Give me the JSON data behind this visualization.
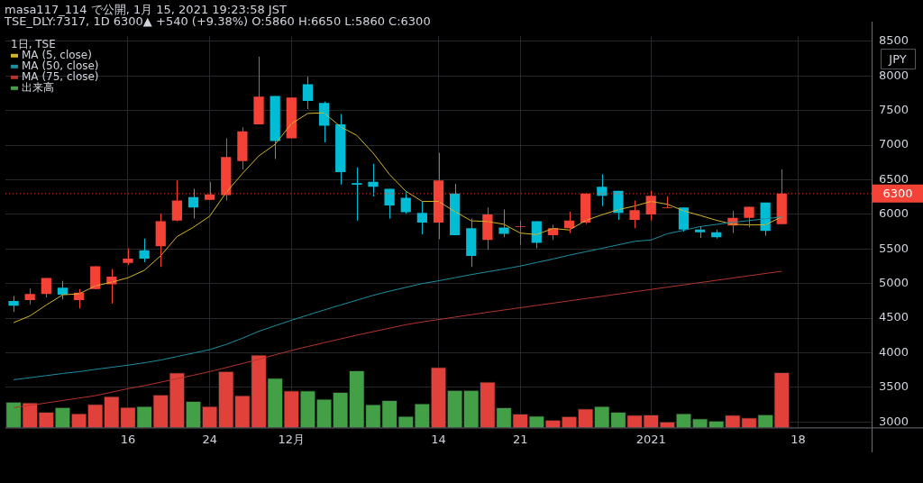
{
  "chart_data": {
    "type": "candlestick",
    "title": "masa117_114 で公開, 1月 15, 2021 19:23:58 JST",
    "subtitle": "TSE_DLY:7317, 1D 6300▲ +540 (+9.38%) O:5860 H:6650 L:5860 C:6300",
    "legend_title": "1日, TSE",
    "annotations": [
      "JPY"
    ],
    "categories": [
      null,
      null,
      null,
      null,
      null,
      null,
      null,
      "16",
      null,
      null,
      null,
      null,
      "24",
      null,
      null,
      null,
      null,
      "12月",
      null,
      null,
      null,
      null,
      null,
      null,
      null,
      null,
      "14",
      null,
      null,
      null,
      null,
      "21",
      null,
      null,
      null,
      null,
      null,
      null,
      null,
      "2021",
      null,
      null,
      null,
      null,
      null,
      null,
      null,
      null,
      "18",
      null,
      null,
      null,
      null
    ],
    "ohlc": [
      [
        4750,
        4820,
        4590,
        4680
      ],
      [
        4760,
        4930,
        4700,
        4850
      ],
      [
        4850,
        5080,
        4800,
        5080
      ],
      [
        4940,
        5040,
        4770,
        4840
      ],
      [
        4760,
        4920,
        4640,
        4870
      ],
      [
        4920,
        5250,
        4920,
        5250
      ],
      [
        4990,
        5210,
        4710,
        5100
      ],
      [
        5300,
        5510,
        5270,
        5360
      ],
      [
        5480,
        5650,
        5310,
        5360
      ],
      [
        5540,
        6010,
        5240,
        5900
      ],
      [
        5910,
        6490,
        5900,
        6200
      ],
      [
        6250,
        6370,
        5940,
        6100
      ],
      [
        6210,
        6470,
        6210,
        6290
      ],
      [
        6280,
        7100,
        6200,
        6830
      ],
      [
        6770,
        7260,
        6650,
        7200
      ],
      [
        7300,
        8280,
        7300,
        7700
      ],
      [
        7710,
        7710,
        6800,
        7060
      ],
      [
        7100,
        7690,
        7100,
        7690
      ],
      [
        7880,
        7990,
        7520,
        7640
      ],
      [
        7610,
        7630,
        7040,
        7280
      ],
      [
        7300,
        7450,
        6430,
        6610
      ],
      [
        6450,
        6680,
        5910,
        6430
      ],
      [
        6470,
        6730,
        6260,
        6400
      ],
      [
        6370,
        6370,
        5940,
        6130
      ],
      [
        6240,
        6330,
        6010,
        6030
      ],
      [
        6020,
        6180,
        5710,
        5880
      ],
      [
        5880,
        6890,
        5640,
        6490
      ],
      [
        6300,
        6440,
        5700,
        5700
      ],
      [
        5800,
        5940,
        5240,
        5400
      ],
      [
        5630,
        6100,
        5490,
        6000
      ],
      [
        5810,
        6070,
        5670,
        5720
      ],
      [
        5820,
        5910,
        5560,
        5830
      ],
      [
        5900,
        5900,
        5510,
        5590
      ],
      [
        5700,
        5850,
        5630,
        5800
      ],
      [
        5800,
        6040,
        5730,
        5910
      ],
      [
        5880,
        6300,
        5860,
        6300
      ],
      [
        6400,
        6580,
        6120,
        6270
      ],
      [
        6340,
        6340,
        5920,
        6020
      ],
      [
        5920,
        6200,
        5800,
        6060
      ],
      [
        6000,
        6340,
        5910,
        6270
      ],
      [
        6090,
        6260,
        6090,
        6100
      ],
      [
        6100,
        6100,
        5750,
        5780
      ],
      [
        5780,
        5830,
        5660,
        5740
      ],
      [
        5740,
        5780,
        5650,
        5670
      ],
      [
        5840,
        6050,
        5730,
        5950
      ],
      [
        5950,
        6110,
        5810,
        6110
      ],
      [
        6170,
        6170,
        5690,
        5760
      ],
      [
        5860,
        6650,
        5860,
        6300
      ],
      null,
      null,
      null,
      null,
      null
    ],
    "colors": [
      "#00bcd4",
      "#f44336",
      "#f44336",
      "#00bcd4",
      "#f44336",
      "#f44336",
      "#f44336",
      "#f44336",
      "#00bcd4",
      "#f44336",
      "#f44336",
      "#00bcd4",
      "#f44336",
      "#f44336",
      "#f44336",
      "#f44336",
      "#00bcd4",
      "#f44336",
      "#00bcd4",
      "#00bcd4",
      "#00bcd4",
      "#00bcd4",
      "#00bcd4",
      "#00bcd4",
      "#00bcd4",
      "#00bcd4",
      "#f44336",
      "#00bcd4",
      "#00bcd4",
      "#f44336",
      "#00bcd4",
      "#f44336",
      "#00bcd4",
      "#f44336",
      "#f44336",
      "#f44336",
      "#00bcd4",
      "#00bcd4",
      "#f44336",
      "#f44336",
      "#f44336",
      "#00bcd4",
      "#00bcd4",
      "#00bcd4",
      "#f44336",
      "#f44336",
      "#00bcd4",
      "#f44336",
      null,
      null,
      null,
      null,
      null
    ],
    "series": [
      {
        "type": "bar",
        "name": "出来高",
        "values": [
          3294,
          3283,
          3147,
          3214,
          3126,
          3261,
          3376,
          3219,
          3232,
          3397,
          3715,
          3304,
          3232,
          3736,
          3388,
          3973,
          3638,
          3456,
          3456,
          3337,
          3434,
          3745,
          3257,
          3316,
          3087,
          3270,
          3795,
          3464,
          3464,
          3582,
          3213,
          3121,
          3090,
          3033,
          3085,
          3194,
          3230,
          3146,
          3103,
          3107,
          3006,
          3126,
          3051,
          3020,
          3103,
          3064,
          3112,
          3721,
          null,
          null,
          null,
          null,
          null
        ],
        "colors": [
          "#43a047",
          "#e0413a",
          "#e0413a",
          "#43a047",
          "#e0413a",
          "#e0413a",
          "#e0413a",
          "#e0413a",
          "#43a047",
          "#e0413a",
          "#e0413a",
          "#43a047",
          "#e0413a",
          "#e0413a",
          "#e0413a",
          "#e0413a",
          "#43a047",
          "#e0413a",
          "#43a047",
          "#43a047",
          "#43a047",
          "#43a047",
          "#43a047",
          "#43a047",
          "#43a047",
          "#43a047",
          "#e0413a",
          "#43a047",
          "#43a047",
          "#e0413a",
          "#43a047",
          "#e0413a",
          "#43a047",
          "#e0413a",
          "#e0413a",
          "#e0413a",
          "#43a047",
          "#43a047",
          "#e0413a",
          "#e0413a",
          "#e0413a",
          "#43a047",
          "#43a047",
          "#43a047",
          "#e0413a",
          "#e0413a",
          "#43a047",
          "#e0413a",
          null,
          null,
          null,
          null,
          null
        ]
      },
      {
        "type": "line",
        "name": "MA (75, close)",
        "color": "#b5342c",
        "values": [
          3206,
          3240,
          3275,
          3310,
          3345,
          3380,
          3430,
          3481,
          3525,
          3575,
          3625,
          3675,
          3727,
          3785,
          3845,
          3905,
          3970,
          4033,
          4090,
          4145,
          4200,
          4255,
          4305,
          4355,
          4406,
          4445,
          4480,
          4515,
          4550,
          4585,
          4618,
          4651,
          4684,
          4717,
          4750,
          4783,
          4816,
          4849,
          4882,
          4915,
          4948,
          4981,
          5014,
          5047,
          5080,
          5113,
          5146,
          5178,
          null,
          null,
          null,
          null,
          null
        ]
      },
      {
        "type": "line",
        "name": "MA (50, close)",
        "color": "#1b8fa0",
        "values": [
          3610,
          3640,
          3670,
          3700,
          3727,
          3760,
          3790,
          3821,
          3855,
          3895,
          3945,
          3995,
          4046,
          4120,
          4210,
          4310,
          4390,
          4470,
          4545,
          4618,
          4690,
          4760,
          4830,
          4890,
          4945,
          5000,
          5040,
          5085,
          5130,
          5170,
          5210,
          5253,
          5305,
          5355,
          5410,
          5460,
          5510,
          5560,
          5610,
          5630,
          5720,
          5770,
          5823,
          5855,
          5885,
          5910,
          5937,
          5963,
          null,
          null,
          null,
          null,
          null
        ]
      },
      {
        "type": "line",
        "name": "MA (5, close)",
        "color": "#d4b42a",
        "values": [
          4435,
          4533,
          4690,
          4838,
          4851,
          4966,
          5020,
          5084,
          5191,
          5402,
          5678,
          5814,
          5974,
          6314,
          6590,
          6844,
          7013,
          7310,
          7459,
          7467,
          7268,
          7141,
          6886,
          6577,
          6335,
          6187,
          6187,
          6042,
          5907,
          5897,
          5857,
          5730,
          5708,
          5796,
          5775,
          5911,
          5994,
          6068,
          6121,
          6187,
          6147,
          6051,
          5985,
          5915,
          5857,
          5848,
          5848,
          5964,
          null,
          null,
          null,
          null,
          null
        ]
      }
    ],
    "ylim": [
      2920,
      8580
    ],
    "yticks": [
      3000,
      3500,
      4000,
      4500,
      5000,
      5500,
      6000,
      6500,
      7000,
      7500,
      8000,
      8500
    ],
    "ref_lines": [
      {
        "axis": "y",
        "value": 6300,
        "label": "6300",
        "color": "#f44336",
        "line_style": "dotted"
      }
    ],
    "grid": true,
    "legend": "top left",
    "marker": "none"
  }
}
